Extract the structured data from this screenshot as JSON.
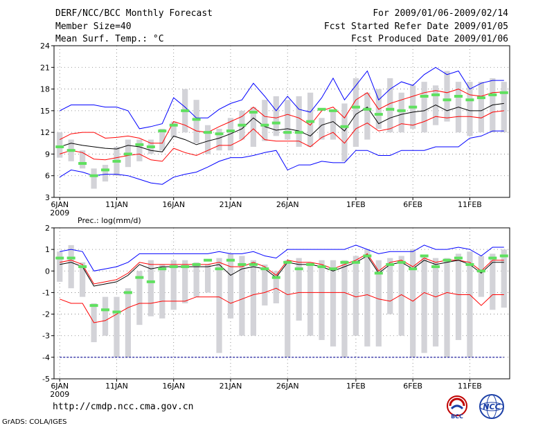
{
  "header": {
    "left": [
      "DERF/NCC/BCC Monthly Forecast",
      "Member Size=40",
      "Mean Surf. Temp.: °C"
    ],
    "right": [
      "For 2009/01/06-2009/02/14",
      "Fcst Started Refer Date 2009/01/05",
      "Fcst Produced Date 2009/01/06"
    ]
  },
  "footer": {
    "url": "http://cmdp.ncc.cma.gov.cn",
    "credit": "GrADS: COLA/IGES",
    "logo_left_text": "BCC",
    "logo_right_text": "NCC"
  },
  "chart_data": [
    {
      "type": "box",
      "title": "Mean Surf. Temp.: °C",
      "ylim": [
        3,
        24
      ],
      "yticks": [
        3,
        6,
        9,
        12,
        15,
        18,
        21,
        24
      ],
      "xlim": [
        0.5,
        40.5
      ],
      "xticks": [
        {
          "day": 1,
          "label": "6JAN",
          "sub": "2009"
        },
        {
          "day": 6,
          "label": "11JAN"
        },
        {
          "day": 11,
          "label": "16JAN"
        },
        {
          "day": 16,
          "label": "21JAN"
        },
        {
          "day": 21,
          "label": "26JAN"
        },
        {
          "day": 27,
          "label": "1FEB"
        },
        {
          "day": 32,
          "label": "6FEB"
        },
        {
          "day": 37,
          "label": "11FEB"
        }
      ],
      "box_low": [
        8.5,
        8,
        7,
        4.2,
        5.2,
        6,
        7.2,
        8,
        9,
        9.5,
        11.3,
        12,
        10.5,
        9,
        9.5,
        9.5,
        11,
        10,
        10.8,
        11.5,
        11,
        10,
        10,
        11,
        11,
        8,
        10,
        11,
        12.5,
        12,
        12,
        12.5,
        12,
        13,
        13.5,
        12,
        11.5,
        12,
        12,
        12
      ],
      "box_high": [
        12,
        11,
        9.5,
        7,
        7.5,
        10,
        11,
        11,
        11,
        12.5,
        13.5,
        18,
        16.5,
        13,
        12.5,
        14,
        15,
        15.5,
        16.5,
        17,
        16.5,
        17,
        17.5,
        14,
        15,
        16,
        19.5,
        17.5,
        18,
        19.5,
        17.5,
        18.5,
        19,
        18.5,
        20.5,
        19,
        19,
        19,
        19.5,
        19
      ],
      "green": [
        10,
        9.5,
        7.7,
        6,
        6.8,
        8,
        9,
        10.3,
        10,
        12.2,
        13,
        15,
        13.8,
        12,
        11.8,
        12.2,
        13,
        14.8,
        13,
        13.3,
        12,
        12,
        13.5,
        15.2,
        15,
        12.8,
        15.5,
        15.2,
        14.5,
        15.2,
        15,
        15.5,
        17,
        17.2,
        16.5,
        17,
        16.5,
        16.8,
        17.2,
        17.5
      ],
      "series": [
        {
          "name": "max",
          "color": "#0000ff",
          "values": [
            15,
            15.8,
            15.8,
            15.8,
            15.5,
            15.5,
            15,
            12.5,
            12.8,
            13.2,
            16.8,
            15.5,
            14,
            14,
            15.2,
            16,
            16.5,
            18.8,
            17,
            15,
            17,
            15.2,
            14.8,
            16.8,
            19.5,
            16.5,
            18.5,
            20.5,
            16.5,
            18,
            19,
            18.5,
            20,
            21,
            20,
            20.5,
            18,
            18.8,
            19.2,
            19.2
          ]
        },
        {
          "name": "upper",
          "color": "#ff0000",
          "values": [
            11,
            11.8,
            12,
            12,
            11.2,
            11.3,
            11.5,
            11.2,
            10.5,
            10.5,
            13.5,
            13,
            12.2,
            12,
            12.8,
            13.5,
            14.2,
            15.5,
            14.2,
            14,
            14.5,
            14,
            13,
            15,
            15.5,
            14,
            16.5,
            17.5,
            15.2,
            16,
            16.5,
            17,
            17.5,
            17.8,
            17.5,
            18,
            17.2,
            17,
            17.5,
            17.6
          ]
        },
        {
          "name": "mean",
          "color": "#000000",
          "values": [
            10,
            10.5,
            10.2,
            10,
            9.8,
            9.7,
            10.2,
            10,
            9.5,
            9.3,
            11.5,
            11,
            10.3,
            10.8,
            11.2,
            11.8,
            12.5,
            14,
            12.8,
            12.3,
            12.5,
            12.2,
            11.5,
            13,
            13.5,
            12.2,
            14.5,
            15.5,
            13.2,
            14,
            14.5,
            14.8,
            15,
            15.8,
            15,
            15.5,
            15,
            15,
            15.8,
            16
          ]
        },
        {
          "name": "lower",
          "color": "#ff0000",
          "values": [
            9,
            9.5,
            9.2,
            8.3,
            8.2,
            8.5,
            8.8,
            9,
            8.2,
            8,
            9.8,
            9.2,
            8.8,
            9.5,
            10.2,
            10.2,
            11,
            12.5,
            11,
            10.8,
            10.8,
            10.8,
            10,
            11.3,
            12,
            10.5,
            12.5,
            13.3,
            12.2,
            12.5,
            13.2,
            13,
            13.5,
            14.2,
            14,
            14.2,
            14.2,
            14,
            14.8,
            15
          ]
        },
        {
          "name": "min",
          "color": "#0000ff",
          "values": [
            5.8,
            6.8,
            6.5,
            6,
            6.2,
            6.2,
            6,
            5.5,
            5,
            4.8,
            5.8,
            6.2,
            6.5,
            7.2,
            8,
            8.5,
            8.5,
            8.8,
            9.2,
            9.5,
            6.8,
            7.5,
            7.5,
            8,
            7.8,
            7.8,
            9.5,
            9.5,
            8.8,
            8.8,
            9.5,
            9.5,
            9.5,
            10,
            10,
            10,
            11.2,
            11.5,
            12.2,
            12.2
          ]
        }
      ]
    },
    {
      "type": "box",
      "title": "Prec.: log(mm/d)",
      "ylim": [
        -5,
        2
      ],
      "yticks": [
        -5,
        -4,
        -3,
        -2,
        -1,
        0,
        1,
        2
      ],
      "xlim": [
        0.5,
        40.5
      ],
      "xticks": [
        {
          "day": 1,
          "label": "6JAN",
          "sub": "2009"
        },
        {
          "day": 6,
          "label": "11JAN"
        },
        {
          "day": 11,
          "label": "16JAN"
        },
        {
          "day": 16,
          "label": "21JAN"
        },
        {
          "day": 21,
          "label": "26JAN"
        },
        {
          "day": 27,
          "label": "1FEB"
        },
        {
          "day": 32,
          "label": "6FEB"
        },
        {
          "day": 37,
          "label": "11FEB"
        }
      ],
      "floor_value": -4,
      "box_low": [
        -0.5,
        -0.8,
        -1.2,
        -3.3,
        -3,
        -4,
        -4,
        -2.5,
        -2.1,
        -2.2,
        -1.8,
        -1.5,
        -1.2,
        -1,
        -3.8,
        -2.2,
        -3,
        -3,
        -1.6,
        -1.5,
        -4,
        -2.3,
        -3,
        -3.2,
        -3.5,
        -4,
        -3,
        -3.5,
        -3.5,
        -2,
        -3,
        -4,
        -3.8,
        -3.5,
        -4,
        -3.2,
        -4,
        -1.2,
        -1.8,
        -1.7
      ],
      "box_high": [
        0.9,
        1.2,
        0.4,
        -1.5,
        -1.2,
        -1.2,
        -0.8,
        0,
        0.5,
        0.3,
        0.5,
        0.5,
        0.4,
        0.3,
        0.6,
        0.8,
        0.7,
        0.5,
        0.3,
        0,
        0.5,
        0.6,
        0.4,
        0.5,
        0.5,
        0.5,
        0.7,
        1,
        0.5,
        0.6,
        0.7,
        1,
        0.7,
        0.6,
        0.6,
        0.8,
        0.9,
        0.7,
        0.8,
        1
      ],
      "green": [
        0.6,
        0.6,
        0.2,
        -1.6,
        -1.8,
        -1.9,
        -1,
        -0.3,
        -0.5,
        0.1,
        0.2,
        0.2,
        0.3,
        0.5,
        0.1,
        0.5,
        0.3,
        0.3,
        0.1,
        -0.3,
        0.4,
        0.1,
        0.3,
        0.2,
        0.1,
        0.4,
        0.4,
        0.7,
        -0.1,
        0.3,
        0.4,
        0.1,
        0.7,
        0.2,
        0.5,
        0.6,
        0.3,
        0,
        0.6,
        0.7
      ],
      "series": [
        {
          "name": "max",
          "color": "#0000ff",
          "values": [
            0.9,
            1,
            0.9,
            0,
            0.1,
            0.2,
            0.4,
            0.8,
            0.8,
            0.8,
            0.8,
            0.8,
            0.8,
            0.8,
            0.9,
            0.8,
            0.8,
            0.9,
            0.7,
            0.6,
            1,
            1,
            1,
            1,
            1,
            1,
            1.2,
            1,
            0.8,
            0.9,
            0.9,
            0.9,
            1.2,
            1,
            1,
            1.1,
            1,
            0.7,
            1.1,
            1.1
          ]
        },
        {
          "name": "upper",
          "color": "#ff0000",
          "values": [
            0.4,
            0.5,
            0.3,
            -0.6,
            -0.5,
            -0.4,
            -0.1,
            0.4,
            0.3,
            0.3,
            0.3,
            0.3,
            0.3,
            0.3,
            0.4,
            0.2,
            0.2,
            0.4,
            0.2,
            -0.2,
            0.5,
            0.4,
            0.4,
            0.3,
            0.1,
            0.3,
            0.5,
            0.8,
            0,
            0.4,
            0.5,
            0.2,
            0.6,
            0.4,
            0.5,
            0.5,
            0.4,
            0,
            0.5,
            0.5
          ]
        },
        {
          "name": "mean",
          "color": "#000000",
          "values": [
            0.3,
            0.4,
            0.2,
            -0.7,
            -0.6,
            -0.5,
            -0.2,
            0.3,
            0.1,
            0.2,
            0.2,
            0.2,
            0.2,
            0.2,
            0.3,
            -0.2,
            0.1,
            0.2,
            0.1,
            -0.3,
            0.4,
            0.3,
            0.3,
            0.2,
            0,
            0.2,
            0.4,
            0.7,
            -0.1,
            0.3,
            0.4,
            0.1,
            0.5,
            0.3,
            0.4,
            0.5,
            0.3,
            -0.1,
            0.4,
            0.4
          ]
        },
        {
          "name": "lower",
          "color": "#ff0000",
          "values": [
            -1.3,
            -1.5,
            -1.5,
            -2.4,
            -2.3,
            -2,
            -1.7,
            -1.5,
            -1.5,
            -1.4,
            -1.4,
            -1.4,
            -1.2,
            -1.2,
            -1.2,
            -1.5,
            -1.3,
            -1.1,
            -1,
            -0.8,
            -1.1,
            -1,
            -1,
            -1,
            -1,
            -1,
            -1.2,
            -1.1,
            -1.3,
            -1.4,
            -1.1,
            -1.4,
            -1,
            -1.2,
            -1,
            -1.1,
            -1.1,
            -1.6,
            -1.1,
            -1.1
          ]
        },
        {
          "name": "min",
          "color": "#0000ff",
          "values": [
            -4,
            -4,
            -4,
            -4,
            -4,
            -4,
            -4,
            -4,
            -4,
            -4,
            -4,
            -4,
            -4,
            -4,
            -4,
            -4,
            -4,
            -4,
            -4,
            -4,
            -4,
            -4,
            -4,
            -4,
            -4,
            -4,
            -4,
            -4,
            -4,
            -4,
            -4,
            -4,
            -4,
            -4,
            -4,
            -4,
            -4,
            -4,
            -4,
            -4
          ]
        }
      ]
    }
  ]
}
